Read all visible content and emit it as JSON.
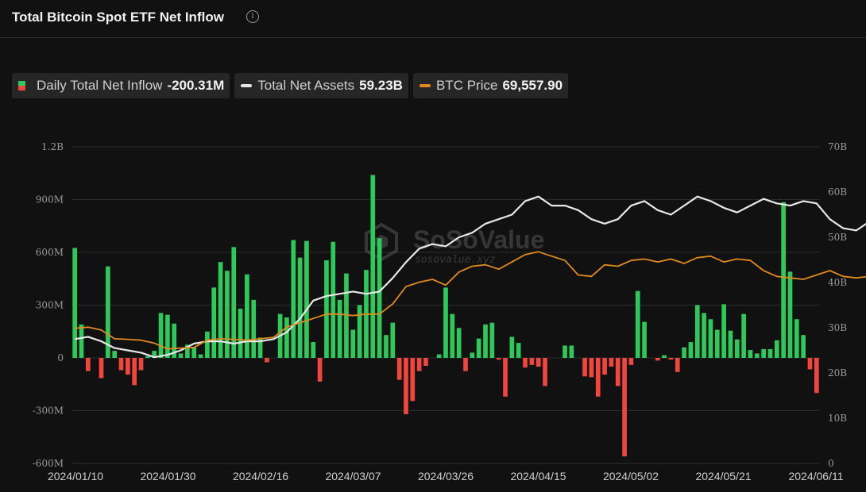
{
  "header": {
    "title": "Total Bitcoin Spot ETF Net Inflow",
    "info_icon": "info-circle-icon"
  },
  "legend": {
    "inflow_label": "Daily Total Net Inflow",
    "inflow_value": "-200.31M",
    "assets_label": "Total Net Assets",
    "assets_value": "59.23B",
    "btc_label": "BTC Price",
    "btc_value": "69,557.90"
  },
  "watermark": {
    "name": "SoSoValue",
    "url": "sosovalue.xyz"
  },
  "colors": {
    "positive": "#2ec95a",
    "negative": "#f0463e",
    "assets_line": "#e8e8e8",
    "btc_line": "#e08a1e",
    "background": "#111111"
  },
  "chart_data": {
    "type": "bar",
    "x_ticks": [
      "2024/01/10",
      "2024/01/30",
      "2024/02/16",
      "2024/03/07",
      "2024/03/26",
      "2024/04/15",
      "2024/05/02",
      "2024/05/21",
      "2024/06/11"
    ],
    "y_left_ticks": [
      "1.2B",
      "900M",
      "600M",
      "300M",
      "0",
      "-300M",
      "-600M"
    ],
    "y_left_range_millions": [
      -600,
      1200
    ],
    "y_right_ticks": [
      "70B",
      "60B",
      "50B",
      "40B",
      "30B",
      "20B",
      "10B",
      "0"
    ],
    "y_right_range_billions": [
      0,
      70
    ],
    "grid": true,
    "legend_position": "top-left",
    "series": [
      {
        "name": "Daily Total Net Inflow",
        "kind": "bar",
        "unit": "M USD",
        "values": [
          625,
          190,
          -75,
          0,
          -115,
          520,
          40,
          -70,
          -95,
          -155,
          -70,
          10,
          40,
          255,
          245,
          195,
          25,
          75,
          60,
          20,
          150,
          400,
          545,
          495,
          630,
          280,
          475,
          330,
          115,
          -25,
          0,
          250,
          230,
          670,
          570,
          665,
          90,
          -135,
          555,
          660,
          330,
          480,
          160,
          300,
          500,
          1040,
          680,
          130,
          200,
          -125,
          -320,
          -245,
          -75,
          -45,
          0,
          20,
          400,
          250,
          170,
          -75,
          30,
          110,
          190,
          200,
          -10,
          -220,
          120,
          85,
          -55,
          -40,
          -50,
          -160,
          0,
          0,
          70,
          70,
          0,
          -105,
          -110,
          -220,
          -95,
          -50,
          -160,
          -560,
          -40,
          380,
          205,
          0,
          -15,
          15,
          -10,
          -80,
          60,
          90,
          300,
          255,
          220,
          160,
          305,
          155,
          105,
          250,
          45,
          25,
          50,
          50,
          100,
          885,
          490,
          220,
          130,
          -65,
          -200
        ]
      },
      {
        "name": "Total Net Assets",
        "kind": "line",
        "unit": "B USD",
        "points": [
          [
            0,
            27.5
          ],
          [
            2,
            28.0
          ],
          [
            4,
            27.0
          ],
          [
            6,
            25.5
          ],
          [
            8,
            25.0
          ],
          [
            10,
            24.5
          ],
          [
            12,
            23.5
          ],
          [
            14,
            24.0
          ],
          [
            16,
            25.0
          ],
          [
            18,
            26.5
          ],
          [
            20,
            27.0
          ],
          [
            22,
            27.0
          ],
          [
            24,
            26.5
          ],
          [
            26,
            27.0
          ],
          [
            28,
            27.0
          ],
          [
            30,
            27.5
          ],
          [
            32,
            29.0
          ],
          [
            34,
            32.0
          ],
          [
            36,
            36.0
          ],
          [
            38,
            37.0
          ],
          [
            40,
            37.5
          ],
          [
            42,
            38.0
          ],
          [
            44,
            37.5
          ],
          [
            46,
            38.0
          ],
          [
            48,
            41.0
          ],
          [
            50,
            44.5
          ],
          [
            52,
            47.5
          ],
          [
            54,
            48.5
          ],
          [
            56,
            48.0
          ],
          [
            58,
            50.0
          ],
          [
            60,
            51.0
          ],
          [
            62,
            53.0
          ],
          [
            64,
            54.0
          ],
          [
            66,
            55.0
          ],
          [
            68,
            58.0
          ],
          [
            70,
            59.0
          ],
          [
            72,
            57.0
          ],
          [
            74,
            57.0
          ],
          [
            76,
            56.0
          ],
          [
            78,
            54.0
          ],
          [
            80,
            53.0
          ],
          [
            82,
            54.0
          ],
          [
            84,
            57.0
          ],
          [
            86,
            58.0
          ],
          [
            88,
            56.0
          ],
          [
            90,
            55.0
          ],
          [
            92,
            57.0
          ],
          [
            94,
            59.0
          ],
          [
            96,
            58.0
          ],
          [
            98,
            56.5
          ],
          [
            100,
            55.5
          ],
          [
            102,
            57.0
          ],
          [
            104,
            58.5
          ],
          [
            106,
            57.5
          ],
          [
            108,
            57.0
          ],
          [
            110,
            58.0
          ],
          [
            112,
            57.5
          ],
          [
            114,
            54.0
          ],
          [
            116,
            52.0
          ],
          [
            118,
            51.5
          ],
          [
            120,
            53.5
          ],
          [
            122,
            54.0
          ],
          [
            124,
            53.0
          ],
          [
            126,
            53.5
          ],
          [
            128,
            52.0
          ],
          [
            130,
            51.5
          ],
          [
            132,
            49.5
          ],
          [
            134,
            47.5
          ],
          [
            136,
            48.0
          ],
          [
            138,
            49.5
          ],
          [
            140,
            51.0
          ],
          [
            142,
            52.0
          ],
          [
            144,
            51.5
          ],
          [
            146,
            51.5
          ],
          [
            148,
            51.0
          ],
          [
            150,
            52.0
          ],
          [
            152,
            51.0
          ],
          [
            154,
            52.0
          ],
          [
            156,
            54.5
          ],
          [
            158,
            55.0
          ],
          [
            160,
            55.5
          ],
          [
            162,
            58.0
          ],
          [
            164,
            58.5
          ],
          [
            166,
            58.0
          ],
          [
            168,
            59.0
          ],
          [
            170,
            58.0
          ],
          [
            172,
            59.0
          ],
          [
            174,
            58.5
          ],
          [
            176,
            60.0
          ],
          [
            178,
            61.5
          ],
          [
            180,
            62.0
          ],
          [
            182,
            61.5
          ],
          [
            184,
            61.0
          ],
          [
            186,
            59.2
          ]
        ]
      },
      {
        "name": "BTC Price",
        "kind": "line",
        "unit": "USD",
        "points": [
          [
            0,
            46600
          ],
          [
            2,
            47000
          ],
          [
            4,
            46000
          ],
          [
            6,
            43000
          ],
          [
            8,
            42800
          ],
          [
            10,
            42500
          ],
          [
            12,
            41500
          ],
          [
            14,
            39500
          ],
          [
            16,
            39800
          ],
          [
            18,
            40000
          ],
          [
            20,
            42500
          ],
          [
            22,
            43000
          ],
          [
            24,
            42800
          ],
          [
            26,
            42500
          ],
          [
            28,
            43000
          ],
          [
            30,
            43500
          ],
          [
            32,
            47000
          ],
          [
            34,
            48500
          ],
          [
            36,
            50000
          ],
          [
            38,
            51500
          ],
          [
            40,
            51500
          ],
          [
            42,
            51000
          ],
          [
            44,
            51500
          ],
          [
            46,
            51500
          ],
          [
            48,
            55000
          ],
          [
            50,
            61000
          ],
          [
            52,
            62500
          ],
          [
            54,
            63500
          ],
          [
            56,
            61500
          ],
          [
            58,
            66000
          ],
          [
            60,
            68000
          ],
          [
            62,
            68500
          ],
          [
            64,
            67000
          ],
          [
            66,
            69500
          ],
          [
            68,
            72000
          ],
          [
            70,
            73000
          ],
          [
            72,
            71500
          ],
          [
            74,
            70000
          ],
          [
            76,
            65000
          ],
          [
            78,
            64500
          ],
          [
            80,
            68500
          ],
          [
            82,
            68000
          ],
          [
            84,
            70000
          ],
          [
            86,
            70500
          ],
          [
            88,
            69500
          ],
          [
            90,
            70500
          ],
          [
            92,
            69000
          ],
          [
            94,
            71000
          ],
          [
            96,
            71500
          ],
          [
            98,
            69500
          ],
          [
            100,
            70500
          ],
          [
            102,
            70000
          ],
          [
            104,
            66500
          ],
          [
            106,
            64500
          ],
          [
            108,
            64000
          ],
          [
            110,
            63500
          ],
          [
            112,
            65000
          ],
          [
            114,
            66500
          ],
          [
            116,
            64500
          ],
          [
            118,
            64000
          ],
          [
            120,
            64500
          ],
          [
            122,
            63000
          ],
          [
            124,
            61000
          ],
          [
            126,
            58500
          ],
          [
            128,
            59000
          ],
          [
            130,
            63000
          ],
          [
            132,
            62000
          ],
          [
            134,
            61500
          ],
          [
            136,
            62000
          ],
          [
            138,
            61500
          ],
          [
            140,
            64000
          ],
          [
            142,
            66000
          ],
          [
            144,
            65500
          ],
          [
            146,
            66000
          ],
          [
            148,
            66500
          ],
          [
            150,
            71000
          ],
          [
            152,
            70500
          ],
          [
            154,
            70000
          ],
          [
            156,
            68500
          ],
          [
            158,
            69500
          ],
          [
            160,
            69000
          ],
          [
            162,
            68000
          ],
          [
            164,
            68500
          ],
          [
            166,
            68000
          ],
          [
            168,
            69000
          ],
          [
            170,
            71000
          ],
          [
            172,
            71000
          ],
          [
            174,
            70000
          ],
          [
            176,
            69557.9
          ]
        ]
      }
    ]
  }
}
